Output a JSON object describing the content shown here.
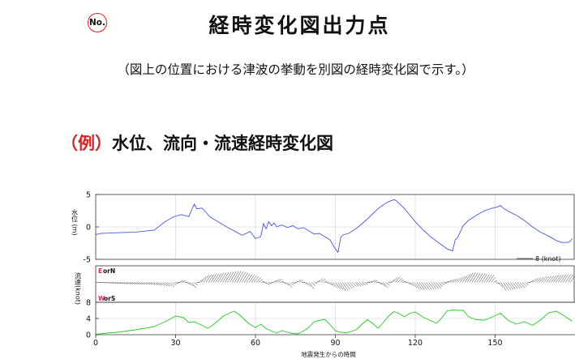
{
  "header": {
    "no_label": "No.",
    "title": "経時変化図出力点",
    "subtitle": "（図上の位置における津波の挙動を別図の経時変化図で示す。）"
  },
  "example": {
    "prefix": "（例）",
    "title": "水位、流向・流速経時変化図"
  },
  "chart_data": [
    {
      "type": "line",
      "panel": "water-level",
      "ylabel": "水位 (m)",
      "ylim": [
        -5,
        5
      ],
      "yticks": [
        "5",
        "0",
        "-5"
      ],
      "xlim": [
        0,
        180
      ],
      "grid": true,
      "color": "#4a55e6",
      "x": [
        0,
        2,
        8,
        15,
        22,
        26,
        29,
        32,
        35,
        36,
        37,
        38,
        40,
        43,
        46,
        50,
        52,
        55,
        58,
        60,
        62,
        63,
        64,
        65,
        66,
        67,
        68,
        70,
        72,
        74,
        76,
        78,
        80,
        82,
        84,
        86,
        88,
        90,
        91,
        92,
        93,
        95,
        98,
        100,
        102,
        104,
        106,
        108,
        110,
        112,
        113,
        114,
        116,
        118,
        120,
        123,
        126,
        129,
        132,
        134,
        135,
        136,
        138,
        140,
        143,
        146,
        149,
        151,
        152,
        153,
        155,
        158,
        161,
        164,
        167,
        170,
        173,
        175,
        177,
        178,
        179
      ],
      "y": [
        -1.2,
        -1.0,
        -0.9,
        -0.8,
        -0.5,
        0.8,
        1.5,
        1.9,
        1.6,
        2.6,
        3.5,
        2.8,
        2.9,
        1.5,
        0.8,
        -0.2,
        -0.6,
        -1.3,
        -0.7,
        -1.8,
        -1.5,
        0.5,
        -0.3,
        0.8,
        0.2,
        0.6,
        0.0,
        0.3,
        -0.1,
        0.2,
        -0.3,
        -0.1,
        -0.6,
        -1.1,
        -1.0,
        -1.5,
        -2.0,
        -3.4,
        -3.9,
        -1.6,
        -1.2,
        -1.0,
        -0.2,
        0.5,
        1.2,
        2.0,
        2.8,
        3.4,
        3.9,
        4.2,
        4.0,
        3.6,
        2.8,
        1.8,
        0.8,
        -0.5,
        -1.6,
        -2.5,
        -3.4,
        -3.7,
        -2.0,
        -1.6,
        0.2,
        1.0,
        1.8,
        2.5,
        2.9,
        3.1,
        3.3,
        2.9,
        2.4,
        1.8,
        1.0,
        0.0,
        -0.8,
        -1.4,
        -2.1,
        -2.4,
        -2.4,
        -2.3,
        -1.8
      ]
    },
    {
      "type": "line",
      "panel": "flow-direction",
      "ylabel": "流速(knot)",
      "top_label": {
        "first": "E",
        "rest": "orN"
      },
      "bottom_label": {
        "first": "W",
        "rest": "orS"
      },
      "scale_label": "8 (knot)",
      "accent_color": "#e02070",
      "xlim": [
        0,
        180
      ],
      "x": [
        0,
        5,
        10,
        20,
        28,
        32,
        36,
        40,
        44,
        48,
        52,
        56,
        60,
        64,
        68,
        72,
        76,
        80,
        84,
        88,
        92,
        96,
        100,
        104,
        108,
        112,
        116,
        120,
        124,
        128,
        132,
        136,
        140,
        144,
        148,
        152,
        156,
        160,
        164,
        168,
        172,
        176,
        179
      ],
      "y": [
        0.0,
        -0.1,
        -0.2,
        -0.3,
        -0.6,
        0.4,
        -0.8,
        1.0,
        1.2,
        1.4,
        1.6,
        1.2,
        0.8,
        -0.4,
        0.6,
        -0.7,
        0.5,
        -0.9,
        0.7,
        -0.6,
        -1.2,
        -0.6,
        -0.4,
        0.4,
        -0.8,
        0.9,
        0.0,
        -1.0,
        -1.0,
        -0.8,
        0.3,
        0.7,
        1.4,
        1.2,
        1.0,
        -1.1,
        -0.9,
        -0.7,
        0.6,
        0.8,
        1.0,
        1.1,
        1.0
      ]
    },
    {
      "type": "line",
      "panel": "speed",
      "ylim": [
        0,
        8
      ],
      "yticks": [
        "8",
        "4",
        "0"
      ],
      "xlim": [
        0,
        180
      ],
      "xticks": [
        "0",
        "30",
        "60",
        "90",
        "120",
        "150"
      ],
      "xlabel": "地震発生からの時間",
      "grid": true,
      "color": "#22cc22",
      "x": [
        0,
        3,
        8,
        15,
        22,
        27,
        30,
        33,
        35,
        37,
        40,
        42,
        44,
        46,
        48,
        50,
        52,
        54,
        56,
        58,
        60,
        62,
        64,
        66,
        68,
        70,
        72,
        74,
        76,
        78,
        80,
        82,
        84,
        86,
        88,
        90,
        92,
        94,
        96,
        98,
        100,
        102,
        104,
        106,
        108,
        110,
        112,
        114,
        116,
        118,
        120,
        123,
        126,
        128,
        130,
        132,
        134,
        136,
        138,
        140,
        143,
        146,
        149,
        152,
        155,
        158,
        161,
        164,
        167,
        170,
        173,
        176,
        179
      ],
      "y": [
        0.1,
        0.3,
        0.6,
        1.2,
        2.0,
        3.5,
        4.6,
        4.2,
        3.0,
        3.2,
        2.3,
        1.6,
        2.4,
        3.5,
        4.6,
        5.3,
        5.8,
        4.9,
        3.6,
        2.5,
        1.8,
        2.6,
        1.5,
        0.9,
        0.4,
        1.0,
        0.6,
        0.3,
        0.2,
        0.9,
        1.8,
        3.2,
        3.5,
        3.8,
        2.5,
        1.0,
        0.6,
        0.5,
        0.8,
        1.3,
        2.6,
        3.7,
        2.8,
        1.6,
        3.0,
        4.6,
        5.7,
        5.2,
        4.4,
        5.3,
        5.6,
        4.3,
        3.4,
        2.8,
        4.2,
        5.9,
        6.1,
        6.0,
        6.0,
        4.4,
        3.7,
        3.6,
        4.4,
        5.3,
        3.5,
        2.6,
        3.2,
        2.3,
        3.6,
        5.4,
        5.8,
        4.6,
        3.3
      ]
    }
  ]
}
